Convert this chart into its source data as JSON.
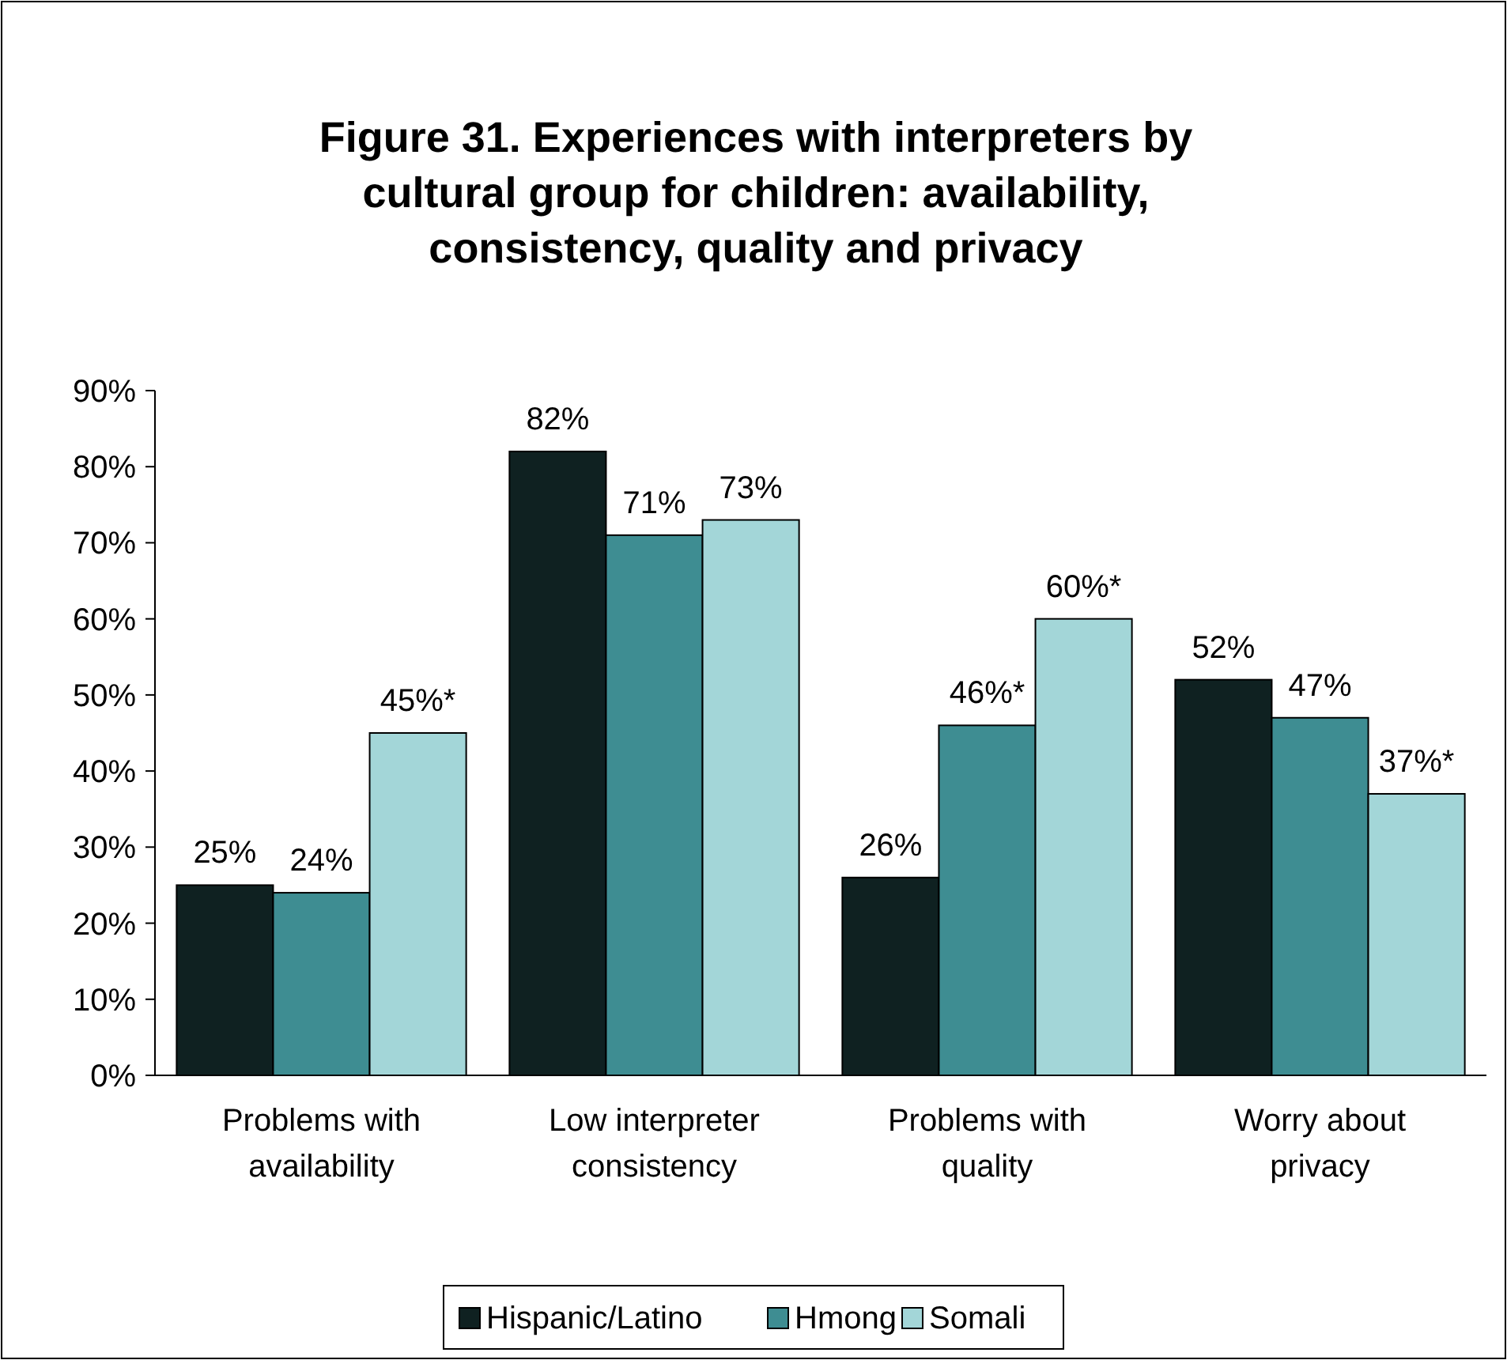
{
  "chart_data": {
    "type": "bar",
    "title": "Figure 31. Experiences with interpreters by cultural group for children: availability, consistency, quality and privacy",
    "categories": [
      "Problems with availability",
      "Low interpreter consistency",
      "Problems with quality",
      "Worry about privacy"
    ],
    "series": [
      {
        "name": "Hispanic/Latino",
        "color": "#0f2121",
        "values": [
          25,
          82,
          26,
          52
        ],
        "value_labels": [
          "25%",
          "82%",
          "26%",
          "52%"
        ]
      },
      {
        "name": "Hmong",
        "color": "#3e8d92",
        "values": [
          24,
          71,
          46,
          47
        ],
        "value_labels": [
          "24%",
          "71%",
          "46%*",
          "47%"
        ]
      },
      {
        "name": "Somali",
        "color": "#a3d6d8",
        "values": [
          45,
          73,
          60,
          37
        ],
        "value_labels": [
          "45%*",
          "73%",
          "60%*",
          "37%*"
        ]
      }
    ],
    "ylim": [
      0,
      90
    ],
    "yticks": [
      {
        "value": 0,
        "label": "0%"
      },
      {
        "value": 10,
        "label": "10%"
      },
      {
        "value": 20,
        "label": "20%"
      },
      {
        "value": 30,
        "label": "30%"
      },
      {
        "value": 40,
        "label": "40%"
      },
      {
        "value": 50,
        "label": "50%"
      },
      {
        "value": 60,
        "label": "60%"
      },
      {
        "value": 70,
        "label": "70%"
      },
      {
        "value": 80,
        "label": "80%"
      },
      {
        "value": 90,
        "label": "90%"
      }
    ],
    "grid": false,
    "legend": "bottom"
  }
}
